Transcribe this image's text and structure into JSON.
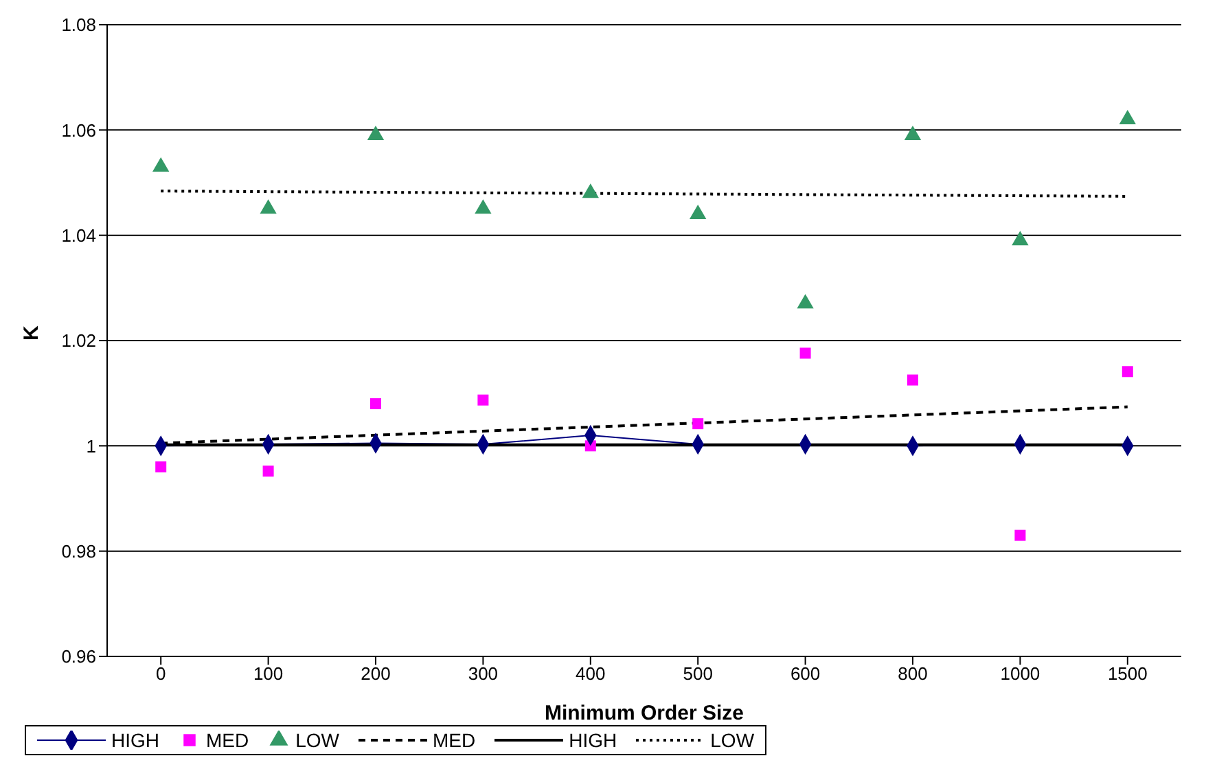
{
  "chart_data": {
    "type": "line",
    "xlabel": "Minimum Order Size",
    "ylabel": "K",
    "categories": [
      "0",
      "100",
      "200",
      "300",
      "400",
      "500",
      "600",
      "800",
      "1000",
      "1500"
    ],
    "series": [
      {
        "name": "HIGH",
        "type": "line",
        "marker": "diamond",
        "color": "#000080",
        "values": [
          1.0,
          1.0003,
          1.0005,
          1.0003,
          1.002,
          1.0003,
          1.0003,
          1.0,
          1.0003,
          1.0
        ]
      },
      {
        "name": "MED",
        "type": "scatter",
        "marker": "square",
        "color": "#ff00ff",
        "values": [
          0.996,
          0.9952,
          1.008,
          1.0087,
          1.0,
          1.0042,
          1.0176,
          1.0125,
          0.983,
          1.0141
        ]
      },
      {
        "name": "LOW",
        "type": "scatter",
        "marker": "triangle",
        "color": "#339966",
        "values": [
          1.053,
          1.045,
          1.059,
          1.045,
          1.048,
          1.044,
          1.027,
          1.059,
          1.039,
          1.062
        ]
      },
      {
        "name": "MED",
        "type": "line",
        "marker": "none",
        "line_style": "dashed",
        "color": "#000000",
        "values": [
          1.0005,
          null,
          null,
          null,
          null,
          null,
          null,
          null,
          null,
          1.0074
        ]
      },
      {
        "name": "HIGH",
        "type": "line",
        "marker": "none",
        "line_style": "solid",
        "color": "#000000",
        "values": [
          1.0002,
          null,
          null,
          null,
          null,
          null,
          null,
          null,
          null,
          1.0002
        ]
      },
      {
        "name": "LOW",
        "type": "line",
        "marker": "none",
        "line_style": "dotted",
        "color": "#000000",
        "values": [
          1.0484,
          null,
          null,
          null,
          null,
          null,
          null,
          null,
          null,
          1.0474
        ]
      }
    ],
    "ylim": [
      0.96,
      1.08
    ],
    "yticks": [
      0.96,
      0.98,
      1,
      1.02,
      1.04,
      1.06,
      1.08
    ],
    "grid": "y",
    "legend": "bottom"
  }
}
